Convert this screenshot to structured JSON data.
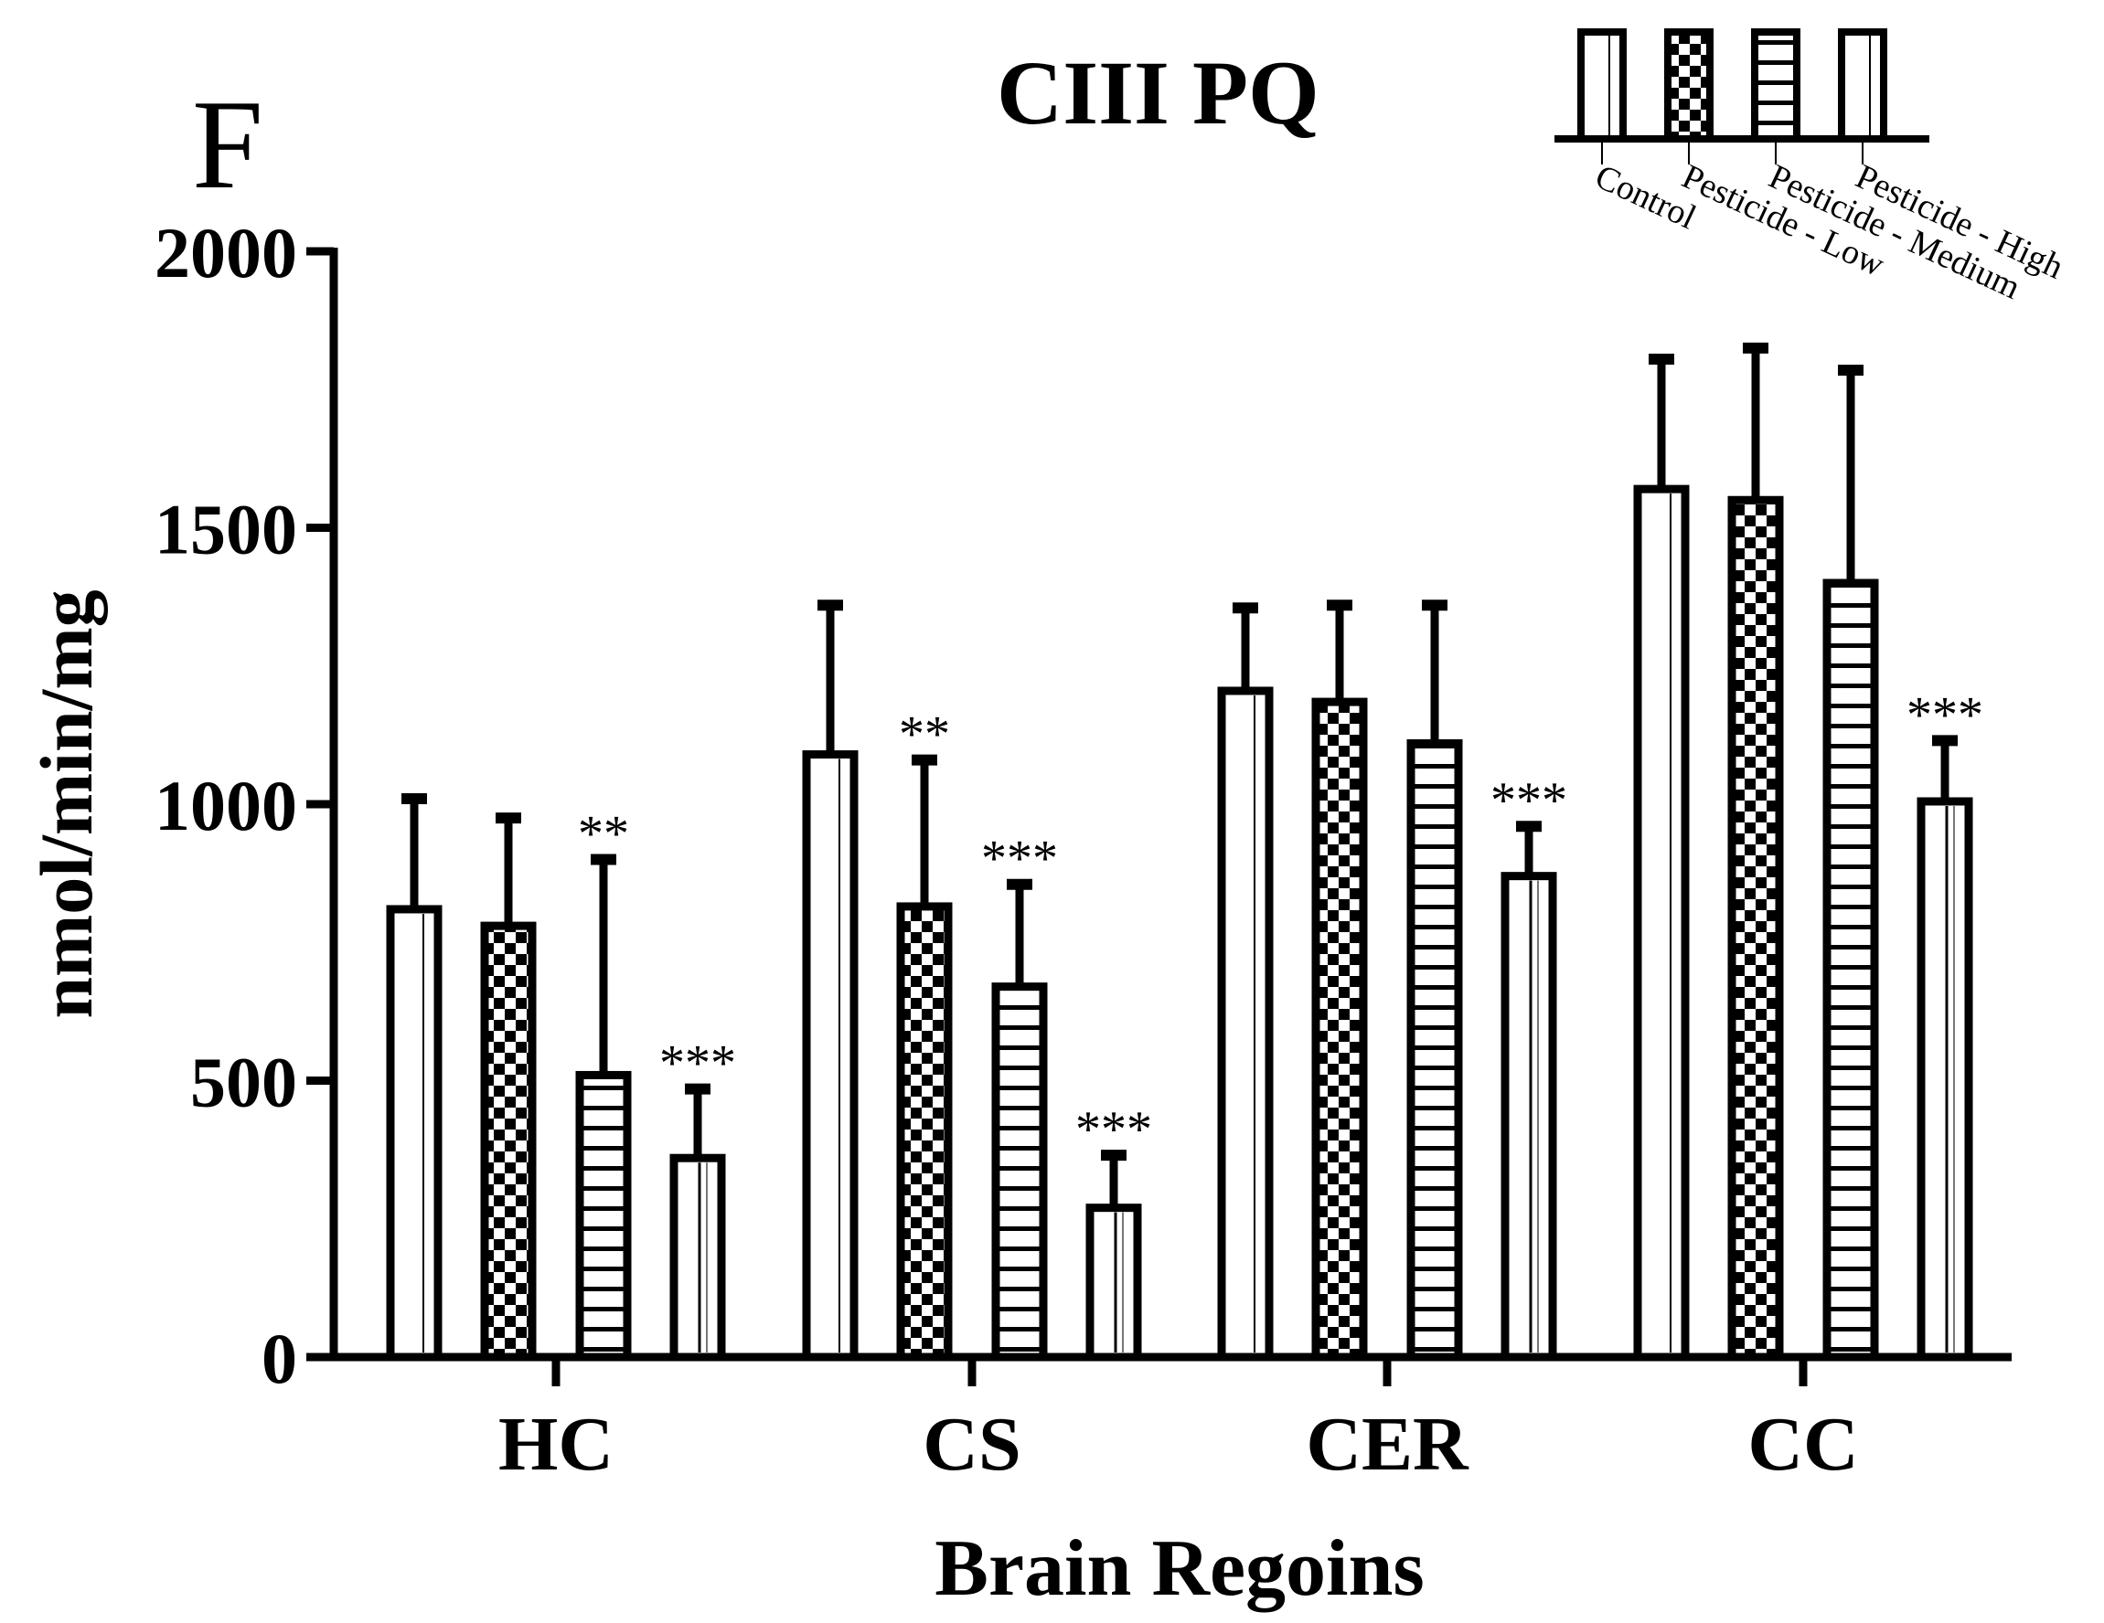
{
  "panel_label": "F",
  "chart_data": {
    "type": "bar",
    "title": "CIII PQ",
    "xlabel": "Brain Regoins",
    "ylabel": "nmol/min/mg",
    "ylim": [
      0,
      2000
    ],
    "yticks": [
      0,
      500,
      1000,
      1500,
      2000
    ],
    "categories": [
      "HC",
      "CS",
      "CER",
      "CC"
    ],
    "legend_position": "top-right",
    "grid": false,
    "series": [
      {
        "name": "Control",
        "pattern": "open-vertical",
        "values": [
          810,
          1090,
          1205,
          1570
        ],
        "errors": [
          200,
          270,
          150,
          235
        ],
        "significance": [
          "",
          "",
          "",
          ""
        ]
      },
      {
        "name": "Pesticide - Low",
        "pattern": "checkerboard",
        "values": [
          780,
          815,
          1185,
          1550
        ],
        "errors": [
          195,
          265,
          175,
          275
        ],
        "significance": [
          "",
          "**",
          "",
          ""
        ]
      },
      {
        "name": "Pesticide - Medium",
        "pattern": "horizontal-lines",
        "values": [
          510,
          670,
          1110,
          1400
        ],
        "errors": [
          390,
          185,
          250,
          385
        ],
        "significance": [
          "**",
          "***",
          "",
          ""
        ]
      },
      {
        "name": "Pesticide - High",
        "pattern": "open-vertical-thin",
        "values": [
          360,
          270,
          870,
          1005
        ],
        "errors": [
          125,
          95,
          90,
          110
        ],
        "significance": [
          "***",
          "***",
          "***",
          "***"
        ]
      }
    ]
  }
}
